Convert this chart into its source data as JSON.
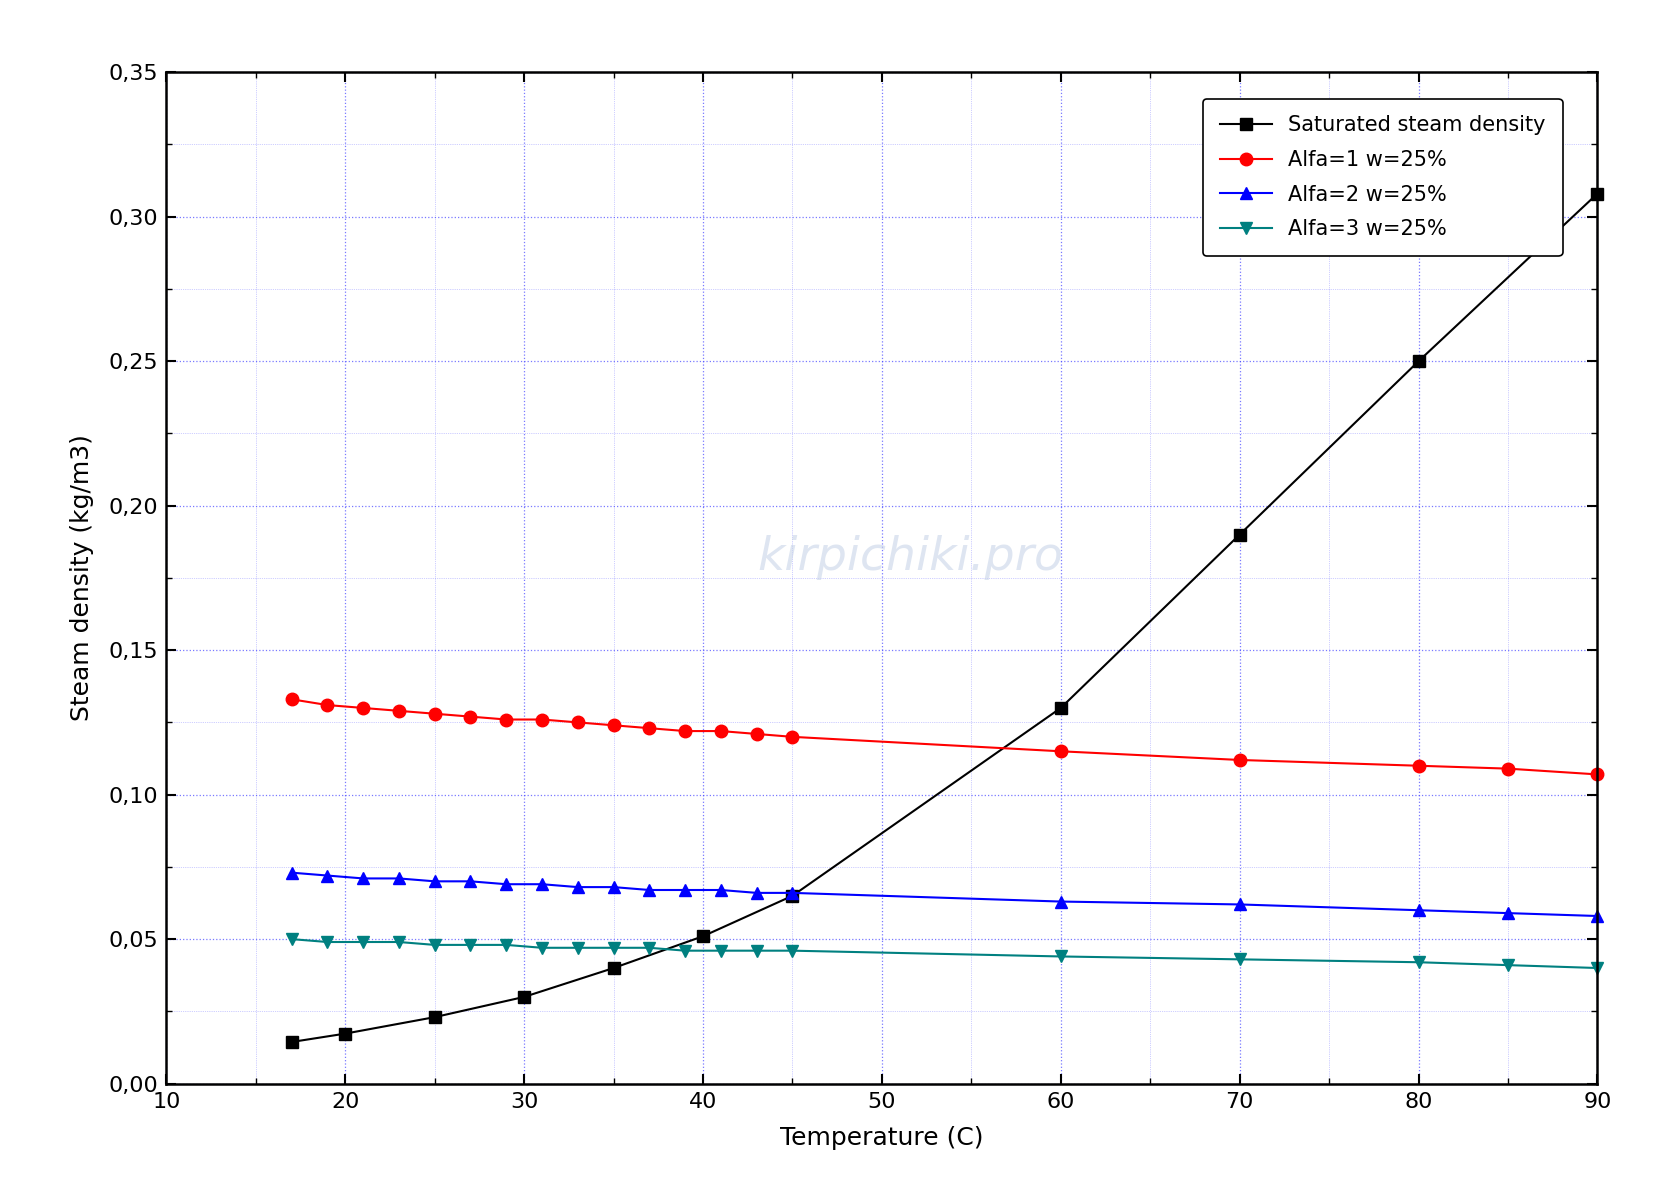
{
  "saturated_steam": {
    "x": [
      17,
      20,
      25,
      30,
      35,
      40,
      45,
      60,
      70,
      80,
      90
    ],
    "y": [
      0.0144,
      0.0173,
      0.023,
      0.03,
      0.04,
      0.051,
      0.065,
      0.13,
      0.19,
      0.25,
      0.308
    ],
    "color": "#000000",
    "marker": "s",
    "label": "Saturated steam density",
    "markersize": 8,
    "linewidth": 1.5
  },
  "alfa1": {
    "x": [
      17,
      19,
      21,
      23,
      25,
      27,
      29,
      31,
      33,
      35,
      37,
      39,
      41,
      43,
      45,
      60,
      70,
      80,
      85,
      90
    ],
    "y": [
      0.133,
      0.131,
      0.13,
      0.129,
      0.128,
      0.127,
      0.126,
      0.126,
      0.125,
      0.124,
      0.123,
      0.122,
      0.122,
      0.121,
      0.12,
      0.115,
      0.112,
      0.11,
      0.109,
      0.107
    ],
    "color": "#ff0000",
    "marker": "o",
    "label": "Alfa=1 w=25%",
    "markersize": 9,
    "linewidth": 1.5
  },
  "alfa2": {
    "x": [
      17,
      19,
      21,
      23,
      25,
      27,
      29,
      31,
      33,
      35,
      37,
      39,
      41,
      43,
      45,
      60,
      70,
      80,
      85,
      90
    ],
    "y": [
      0.073,
      0.072,
      0.071,
      0.071,
      0.07,
      0.07,
      0.069,
      0.069,
      0.068,
      0.068,
      0.067,
      0.067,
      0.067,
      0.066,
      0.066,
      0.063,
      0.062,
      0.06,
      0.059,
      0.058
    ],
    "color": "#0000ff",
    "marker": "^",
    "label": "Alfa=2 w=25%",
    "markersize": 9,
    "linewidth": 1.5
  },
  "alfa3": {
    "x": [
      17,
      19,
      21,
      23,
      25,
      27,
      29,
      31,
      33,
      35,
      37,
      39,
      41,
      43,
      45,
      60,
      70,
      80,
      85,
      90
    ],
    "y": [
      0.05,
      0.049,
      0.049,
      0.049,
      0.048,
      0.048,
      0.048,
      0.047,
      0.047,
      0.047,
      0.047,
      0.046,
      0.046,
      0.046,
      0.046,
      0.044,
      0.043,
      0.042,
      0.041,
      0.04
    ],
    "color": "#008080",
    "marker": "v",
    "label": "Alfa=3 w=25%",
    "markersize": 9,
    "linewidth": 1.5
  },
  "xlabel": "Temperature (C)",
  "ylabel": "Steam density (kg/m3)",
  "xlim": [
    10,
    90
  ],
  "ylim": [
    0.0,
    0.35
  ],
  "yticks": [
    0.0,
    0.05,
    0.1,
    0.15,
    0.2,
    0.25,
    0.3,
    0.35
  ],
  "xticks": [
    10,
    20,
    30,
    40,
    50,
    60,
    70,
    80,
    90
  ],
  "grid_color": "#4040ff",
  "background_color": "#ffffff",
  "legend_loc": "upper right",
  "legend_fontsize": 15,
  "axis_label_fontsize": 18,
  "tick_fontsize": 16,
  "watermark_text": "kirpichiki.pro",
  "watermark_color": "#c8d4e8",
  "watermark_fontsize": 34,
  "watermark_alpha": 0.6
}
